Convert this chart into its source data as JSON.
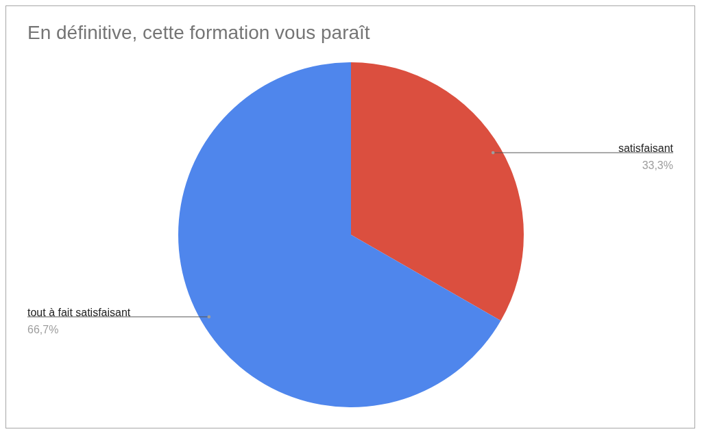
{
  "chart_data": {
    "type": "pie",
    "title": "En définitive, cette formation vous paraît",
    "categories": [
      "satisfaisant",
      "tout à fait satisfaisant"
    ],
    "values": [
      33.3,
      66.7
    ],
    "colors": [
      "#db4f3f",
      "#4f86ec"
    ],
    "value_labels": [
      "33,3%",
      "66,7%"
    ]
  }
}
